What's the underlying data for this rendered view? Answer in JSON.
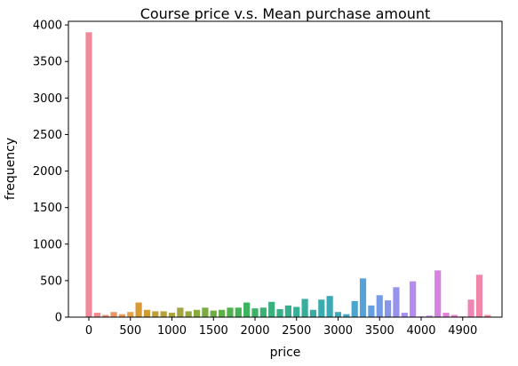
{
  "chart_data": {
    "type": "bar",
    "title": "Course price v.s. Mean purchase amount",
    "xlabel": "price",
    "ylabel": "frequency",
    "ylim": [
      0,
      4050
    ],
    "yticks": [
      0,
      500,
      1000,
      1500,
      2000,
      2500,
      3000,
      3500,
      4000
    ],
    "xtick_labels": [
      {
        "label": "0",
        "index": 0
      },
      {
        "label": "500",
        "index": 5
      },
      {
        "label": "1000",
        "index": 10
      },
      {
        "label": "1500",
        "index": 15
      },
      {
        "label": "2000",
        "index": 20
      },
      {
        "label": "2500",
        "index": 25
      },
      {
        "label": "3000",
        "index": 30
      },
      {
        "label": "3500",
        "index": 35
      },
      {
        "label": "4000",
        "index": 40
      },
      {
        "label": "4900",
        "index": 45
      }
    ],
    "values": [
      3900,
      60,
      30,
      70,
      40,
      70,
      200,
      100,
      80,
      80,
      60,
      130,
      80,
      100,
      130,
      90,
      100,
      130,
      130,
      200,
      120,
      130,
      210,
      110,
      160,
      140,
      250,
      100,
      240,
      290,
      70,
      40,
      220,
      530,
      160,
      300,
      230,
      410,
      60,
      490,
      10,
      20,
      640,
      60,
      30,
      10,
      240,
      580,
      30
    ],
    "colors": [
      "#f08a9a",
      "#f28d8c",
      "#f0907a",
      "#ef9565",
      "#ec9a55",
      "#e6a045",
      "#d89a34",
      "#cc9d33",
      "#c2a035",
      "#b8a238",
      "#ada43a",
      "#a2a63c",
      "#96a83e",
      "#89aa3f",
      "#7bac41",
      "#6dae43",
      "#5fb046",
      "#51b14d",
      "#45b256",
      "#3eb35f",
      "#3bb268",
      "#39b273",
      "#38b17d",
      "#37b086",
      "#37af8e",
      "#37ae96",
      "#38ad9e",
      "#39aca6",
      "#3aabae",
      "#3caab6",
      "#3fa9be",
      "#44a7c6",
      "#4ca5cf",
      "#56a2d8",
      "#659fdf",
      "#759be6",
      "#8697ea",
      "#9793ed",
      "#a68fee",
      "#b48bee",
      "#c188eb",
      "#cc85e6",
      "#d683df",
      "#df82d7",
      "#e682cc",
      "#eb83c1",
      "#ee85b5",
      "#f087a9",
      "#f1899f"
    ]
  }
}
